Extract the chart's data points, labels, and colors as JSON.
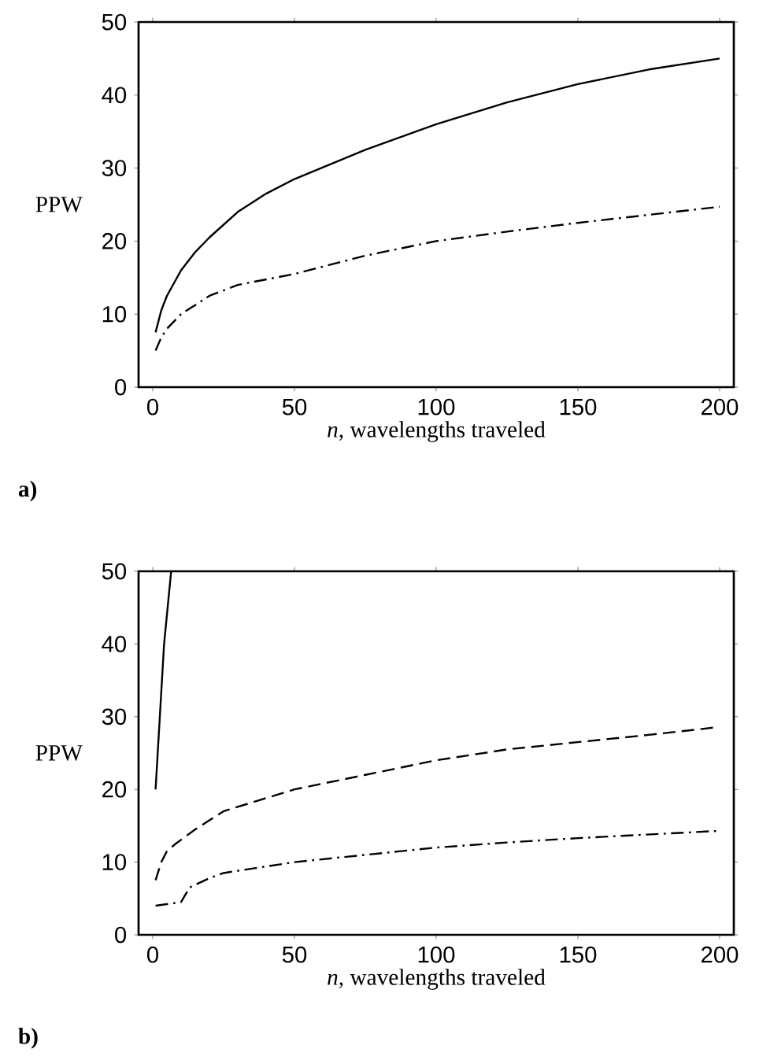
{
  "chart_data": [
    {
      "type": "line",
      "title": "a)",
      "xlabel": "*n*, wavelengths traveled",
      "ylabel": "PPW",
      "xlim": [
        -5,
        205
      ],
      "ylim": [
        0,
        50
      ],
      "xticks": [
        0,
        50,
        100,
        150,
        200
      ],
      "yticks": [
        0,
        10,
        20,
        30,
        40,
        50
      ],
      "series": [
        {
          "color": "#000000",
          "line_style": "solid",
          "x": [
            1,
            3,
            5,
            10,
            15,
            20,
            30,
            40,
            50,
            75,
            100,
            125,
            150,
            175,
            200
          ],
          "values": [
            7.5,
            10.5,
            12.5,
            16,
            18.5,
            20.5,
            24,
            26.5,
            28.5,
            32.5,
            36,
            39,
            41.5,
            43.5,
            45
          ]
        },
        {
          "color": "#000000",
          "line_style": "dashdot",
          "x": [
            1,
            3,
            5,
            10,
            20,
            30,
            50,
            75,
            100,
            125,
            150,
            175,
            200
          ],
          "values": [
            5,
            6.8,
            8,
            10,
            12.5,
            14,
            15.5,
            18,
            20,
            21.3,
            22.5,
            23.6,
            24.7
          ]
        }
      ]
    },
    {
      "type": "line",
      "title": "b)",
      "xlabel": "*n*, wavelengths traveled",
      "ylabel": "PPW",
      "xlim": [
        -5,
        205
      ],
      "ylim": [
        0,
        50
      ],
      "xticks": [
        0,
        50,
        100,
        150,
        200
      ],
      "yticks": [
        0,
        10,
        20,
        30,
        40,
        50
      ],
      "series": [
        {
          "color": "#000000",
          "line_style": "solid",
          "x": [
            1,
            4,
            6.5
          ],
          "values": [
            20,
            40,
            50
          ]
        },
        {
          "color": "#000000",
          "line_style": "dashed",
          "x": [
            1,
            3,
            5,
            8,
            15,
            25,
            50,
            75,
            100,
            125,
            150,
            175,
            198
          ],
          "values": [
            7.5,
            10,
            11.5,
            12.5,
            14.5,
            17,
            20,
            22,
            24,
            25.5,
            26.5,
            27.5,
            28.5
          ]
        },
        {
          "color": "#000000",
          "line_style": "dashdot",
          "x": [
            1,
            10,
            13,
            20,
            25,
            50,
            75,
            100,
            125,
            150,
            175,
            200
          ],
          "values": [
            4,
            4.5,
            6.5,
            7.8,
            8.5,
            10,
            11,
            12,
            12.7,
            13.3,
            13.8,
            14.3
          ]
        }
      ]
    }
  ]
}
